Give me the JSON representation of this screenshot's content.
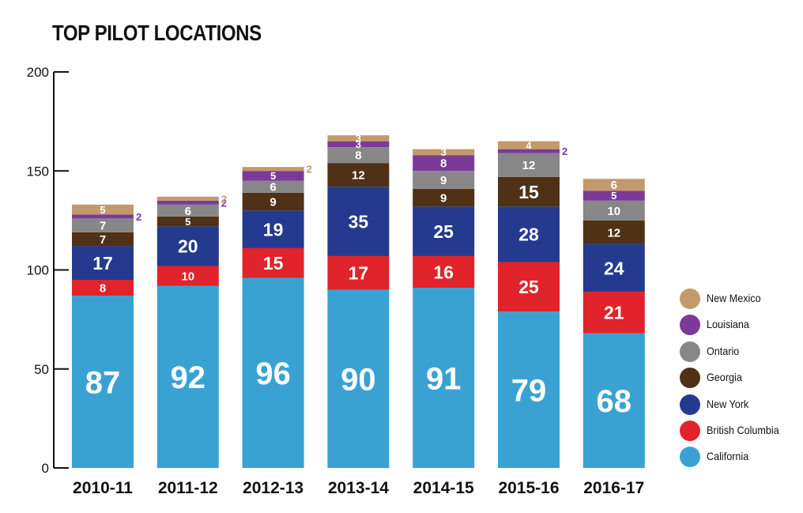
{
  "title": "TOP PILOT LOCATIONS",
  "chart_data": {
    "type": "bar",
    "stacked": true,
    "title": "TOP PILOT LOCATIONS",
    "categories": [
      "2010-11",
      "2011-12",
      "2012-13",
      "2013-14",
      "2014-15",
      "2015-16",
      "2016-17"
    ],
    "ylim": [
      0,
      200
    ],
    "yticks": [
      0,
      50,
      100,
      150,
      200
    ],
    "grid": false,
    "legend_position": "right",
    "series": [
      {
        "name": "California",
        "color": "#3aa2d3",
        "values": [
          87,
          92,
          96,
          90,
          91,
          79,
          68
        ]
      },
      {
        "name": "British Columbia",
        "color": "#e1232b",
        "values": [
          8,
          10,
          15,
          17,
          16,
          25,
          21
        ]
      },
      {
        "name": "New York",
        "color": "#233a8f",
        "values": [
          17,
          20,
          19,
          35,
          25,
          28,
          24
        ]
      },
      {
        "name": "Georgia",
        "color": "#4f3216",
        "values": [
          7,
          5,
          9,
          12,
          9,
          15,
          12
        ]
      },
      {
        "name": "Ontario",
        "color": "#878787",
        "values": [
          7,
          6,
          6,
          8,
          9,
          12,
          10
        ]
      },
      {
        "name": "Louisiana",
        "color": "#7b3a97",
        "values": [
          2,
          2,
          5,
          3,
          8,
          2,
          5
        ]
      },
      {
        "name": "New Mexico",
        "color": "#c29a6b",
        "values": [
          5,
          2,
          2,
          3,
          3,
          4,
          6
        ]
      }
    ],
    "legend": [
      "New Mexico",
      "Louisiana",
      "Ontario",
      "Georgia",
      "New York",
      "British Columbia",
      "California"
    ]
  }
}
